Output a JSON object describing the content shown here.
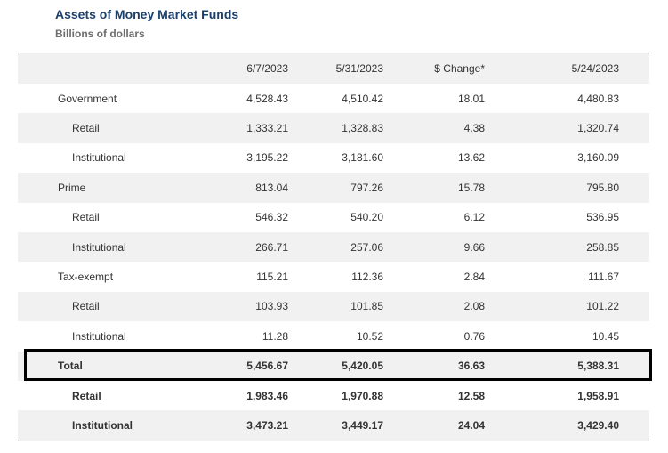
{
  "title": "Assets of Money Market Funds",
  "subtitle": "Billions of dollars",
  "columns": [
    "",
    "6/7/2023",
    "5/31/2023",
    "$ Change*",
    "5/24/2023"
  ],
  "rows": [
    {
      "label": "Government",
      "values": [
        "4,528.43",
        "4,510.42",
        "18.01",
        "4,480.83"
      ]
    },
    {
      "label": "Retail",
      "values": [
        "1,333.21",
        "1,328.83",
        "4.38",
        "1,320.74"
      ]
    },
    {
      "label": "Institutional",
      "values": [
        "3,195.22",
        "3,181.60",
        "13.62",
        "3,160.09"
      ]
    },
    {
      "label": "Prime",
      "values": [
        "813.04",
        "797.26",
        "15.78",
        "795.80"
      ]
    },
    {
      "label": "Retail",
      "values": [
        "546.32",
        "540.20",
        "6.12",
        "536.95"
      ]
    },
    {
      "label": "Institutional",
      "values": [
        "266.71",
        "257.06",
        "9.66",
        "258.85"
      ]
    },
    {
      "label": "Tax-exempt",
      "values": [
        "115.21",
        "112.36",
        "2.84",
        "111.67"
      ]
    },
    {
      "label": "Retail",
      "values": [
        "103.93",
        "101.85",
        "2.08",
        "101.22"
      ]
    },
    {
      "label": "Institutional",
      "values": [
        "11.28",
        "10.52",
        "0.76",
        "10.45"
      ]
    },
    {
      "label": "Total",
      "values": [
        "5,456.67",
        "5,420.05",
        "36.63",
        "5,388.31"
      ]
    },
    {
      "label": "Retail",
      "values": [
        "1,983.46",
        "1,970.88",
        "12.58",
        "1,958.91"
      ]
    },
    {
      "label": "Institutional",
      "values": [
        "3,473.21",
        "3,449.17",
        "24.04",
        "3,429.40"
      ]
    }
  ],
  "colors": {
    "title": "#1b3f6b",
    "subtitle": "#6e6e6e",
    "row_alt": "#f1f1f1",
    "highlight_border": "#000000"
  }
}
